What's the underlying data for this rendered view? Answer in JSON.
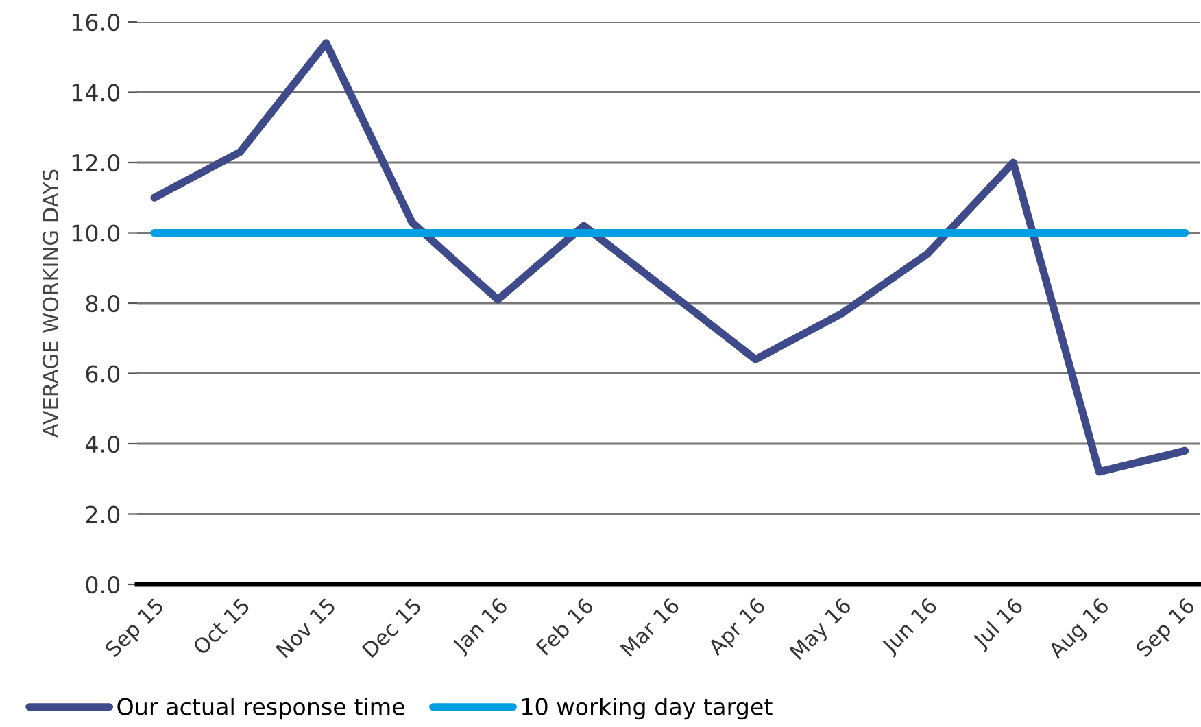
{
  "chart_data": {
    "type": "line",
    "ylabel": "AVERAGE WORKING DAYS",
    "categories": [
      "Sep 15",
      "Oct 15",
      "Nov 15",
      "Dec 15",
      "Jan 16",
      "Feb 16",
      "Mar 16",
      "Apr 16",
      "May 16",
      "Jun 16",
      "Jul 16",
      "Aug 16",
      "Sep 16"
    ],
    "series": [
      {
        "name": "Our actual response time",
        "color": "#3f4a8a",
        "values": [
          11.0,
          12.3,
          15.4,
          10.3,
          8.1,
          10.2,
          null,
          6.4,
          7.7,
          9.4,
          12.0,
          3.2,
          3.8
        ]
      },
      {
        "name": "10 working day target",
        "color": "#009fe3",
        "values": [
          10,
          10,
          10,
          10,
          10,
          10,
          10,
          10,
          10,
          10,
          10,
          10,
          10
        ]
      }
    ],
    "ylim": [
      0,
      16
    ],
    "yticks": [
      {
        "value": 0,
        "label": "0.0"
      },
      {
        "value": 2,
        "label": "2.0"
      },
      {
        "value": 4,
        "label": "4.0"
      },
      {
        "value": 6,
        "label": "6.0"
      },
      {
        "value": 8,
        "label": "8.0"
      },
      {
        "value": 10,
        "label": "10.0"
      },
      {
        "value": 12,
        "label": "12.0"
      },
      {
        "value": 14,
        "label": "14.0"
      },
      {
        "value": 16,
        "label": "16.0"
      }
    ],
    "grid": "y",
    "legend": "bottom left",
    "marker": "none",
    "line_style": "solid"
  }
}
